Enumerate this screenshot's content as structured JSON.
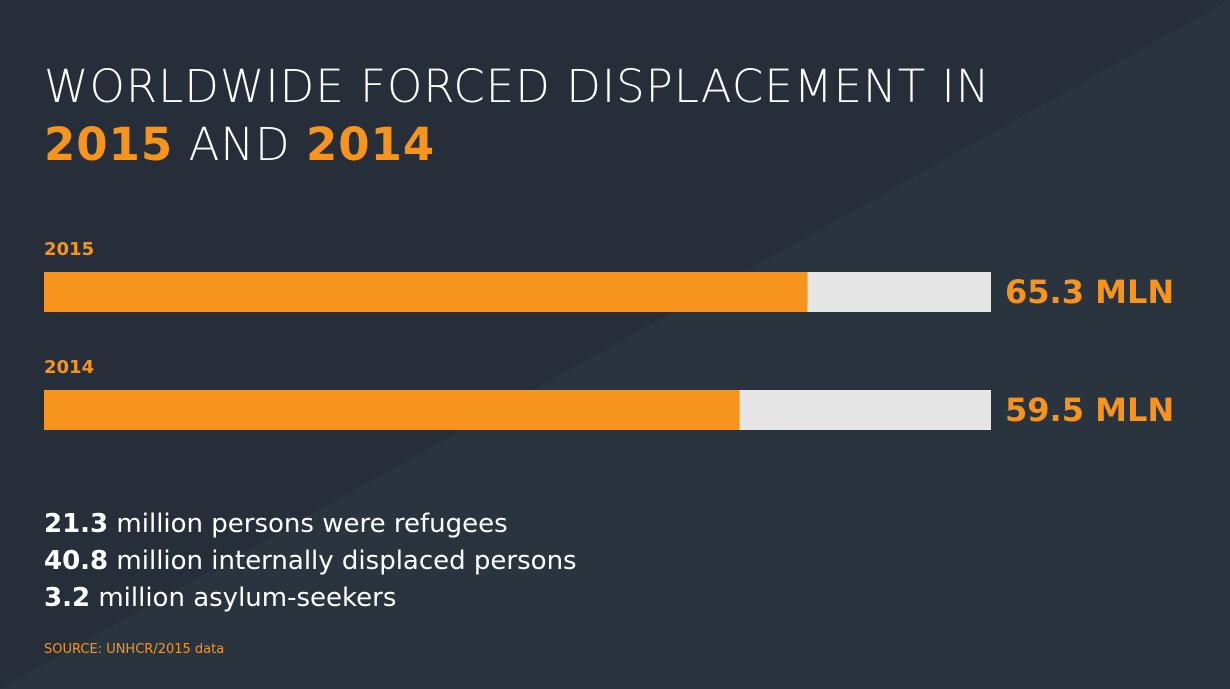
{
  "title": {
    "line1": "WORLDWIDE FORCED DISPLACEMENT IN",
    "year_a": "2015",
    "joiner": "AND",
    "year_b": "2014"
  },
  "chart_data": {
    "type": "bar",
    "orientation": "horizontal",
    "categories": [
      "2015",
      "2014"
    ],
    "values": [
      65.3,
      59.5
    ],
    "value_labels": [
      "65.3 MLN",
      "59.5 MLN"
    ],
    "unit": "MLN",
    "xlim": [
      0,
      81
    ],
    "colors": {
      "bar": "#f7941d",
      "track": "#e6e6e6"
    }
  },
  "facts": [
    {
      "value": "21.3",
      "text": "million persons were refugees"
    },
    {
      "value": "40.8",
      "text": "million internally displaced persons"
    },
    {
      "value": "3.2",
      "text": "million asylum-seekers"
    }
  ],
  "source": "SOURCE: UNHCR/2015 data",
  "colors": {
    "background": "#262f39",
    "background_light": "#2a343e",
    "accent": "#f7941d",
    "text": "#ffffff"
  }
}
